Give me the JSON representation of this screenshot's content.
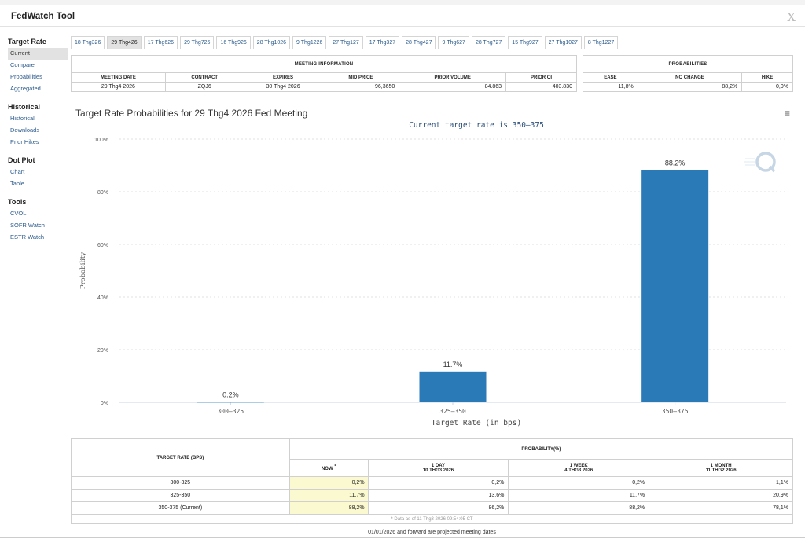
{
  "app": {
    "title": "FedWatch Tool"
  },
  "sidebar": [
    {
      "heading": "Target Rate",
      "items": [
        {
          "label": "Current",
          "active": true
        },
        {
          "label": "Compare"
        },
        {
          "label": "Probabilities"
        },
        {
          "label": "Aggregated"
        }
      ]
    },
    {
      "heading": "Historical",
      "items": [
        {
          "label": "Historical"
        },
        {
          "label": "Downloads"
        },
        {
          "label": "Prior Hikes"
        }
      ]
    },
    {
      "heading": "Dot Plot",
      "items": [
        {
          "label": "Chart"
        },
        {
          "label": "Table"
        }
      ]
    },
    {
      "heading": "Tools",
      "items": [
        {
          "label": "CVOL"
        },
        {
          "label": "SOFR Watch"
        },
        {
          "label": "ESTR Watch"
        }
      ]
    }
  ],
  "date_tabs": [
    "18 Thg326",
    "29 Thg426",
    "17 Thg626",
    "29 Thg726",
    "16 Thg926",
    "28 Thg1026",
    "9 Thg1226",
    "27 Thg127",
    "17 Thg327",
    "28 Thg427",
    "9 Thg627",
    "28 Thg727",
    "15 Thg927",
    "27 Thg1027",
    "8 Thg1227"
  ],
  "active_tab": 1,
  "meeting_info": {
    "section_title": "MEETING INFORMATION",
    "headers": [
      "MEETING DATE",
      "CONTRACT",
      "EXPIRES",
      "MID PRICE",
      "PRIOR VOLUME",
      "PRIOR OI"
    ],
    "row": [
      "29 Thg4 2026",
      "ZQJ6",
      "30 Thg4 2026",
      "96,3650",
      "84.863",
      "403.830"
    ]
  },
  "probabilities": {
    "section_title": "PROBABILITIES",
    "headers": [
      "EASE",
      "NO CHANGE",
      "HIKE"
    ],
    "row": [
      "11,8%",
      "88,2%",
      "0,0%"
    ]
  },
  "chart_data": {
    "type": "bar",
    "title": "Target Rate Probabilities for 29 Thg4 2026 Fed Meeting",
    "subtitle": "Current target rate is 350–375",
    "xlabel": "Target Rate (in bps)",
    "ylabel": "Probability",
    "categories": [
      "300–325",
      "325–350",
      "350–375"
    ],
    "values": [
      0.2,
      11.7,
      88.2
    ],
    "data_labels": [
      "0.2%",
      "11.7%",
      "88.2%"
    ],
    "ylim": [
      0,
      100
    ],
    "yticks": [
      0,
      20,
      40,
      60,
      80,
      100
    ],
    "ytick_labels": [
      "0%",
      "20%",
      "40%",
      "60%",
      "80%",
      "100%"
    ],
    "bar_color": "#2a7ab8",
    "grid": true
  },
  "bottom_table": {
    "target_header": "TARGET RATE (BPS)",
    "prob_header": "PROBABILITY(%)",
    "now_header": "NOW",
    "now_mark": "*",
    "cols": [
      {
        "label": "1 DAY",
        "date": "10 THG3 2026"
      },
      {
        "label": "1 WEEK",
        "date": "4 THG3 2026"
      },
      {
        "label": "1 MONTH",
        "date": "11 THG2 2026"
      }
    ],
    "rows": [
      {
        "rate": "300-325",
        "now": "0,2%",
        "d1": "0,2%",
        "w1": "0,2%",
        "m1": "1,1%"
      },
      {
        "rate": "325-350",
        "now": "11,7%",
        "d1": "13,6%",
        "w1": "11,7%",
        "m1": "20,9%"
      },
      {
        "rate": "350-375 (Current)",
        "now": "88,2%",
        "d1": "86,2%",
        "w1": "88,2%",
        "m1": "78,1%"
      }
    ],
    "note": "* Data as of 11 Thg3 2026 09:54:05 CT",
    "projected_note": "01/01/2026 and forward are projected meeting dates"
  },
  "icons": {
    "close": "X",
    "menu": "hamburger-menu-icon",
    "logo": "quikstrike-q-logo"
  }
}
